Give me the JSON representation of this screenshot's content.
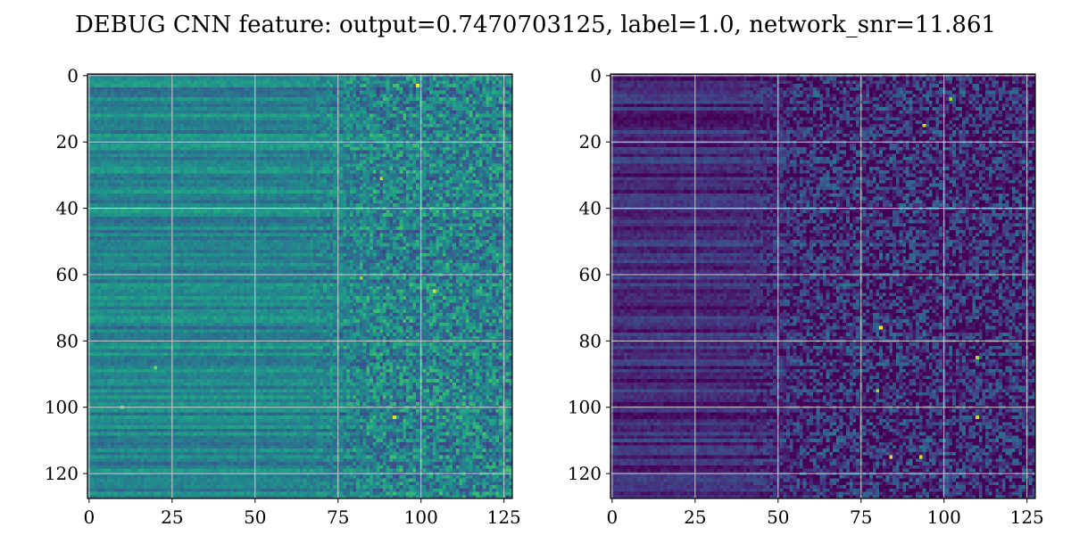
{
  "figure": {
    "title": "DEBUG CNN feature: output=0.7470703125, label=1.0, network_snr=11.861"
  },
  "chart_data": [
    {
      "type": "heatmap",
      "name": "",
      "colormap": "viridis",
      "rows": 128,
      "cols": 128,
      "xlim": [
        0,
        127
      ],
      "ylim": [
        127,
        0
      ],
      "x_ticks": [
        0,
        25,
        50,
        75,
        100,
        125
      ],
      "y_ticks": [
        0,
        20,
        40,
        60,
        80,
        100,
        120
      ],
      "grid": true,
      "grid_color": "#d0d0d0",
      "description_of_values": "horizontal banded stripes on left (cols 0-75), noisy speckled texture on right (cols 75-127); mean level mid-teal",
      "base_level": 0.45,
      "noise_left": 0.06,
      "noise_right": 0.22,
      "transition_col": 75,
      "highlights": [
        {
          "row": 3,
          "col": 99,
          "value": 1.0
        },
        {
          "row": 103,
          "col": 92,
          "value": 0.95
        },
        {
          "row": 65,
          "col": 104,
          "value": 0.95
        },
        {
          "row": 88,
          "col": 20,
          "value": 0.8
        },
        {
          "row": 100,
          "col": 10,
          "value": 0.8
        },
        {
          "row": 31,
          "col": 88,
          "value": 0.9
        },
        {
          "row": 61,
          "col": 82,
          "value": 0.85
        }
      ]
    },
    {
      "type": "heatmap",
      "name": "",
      "colormap": "viridis",
      "rows": 128,
      "cols": 128,
      "xlim": [
        0,
        127
      ],
      "ylim": [
        127,
        0
      ],
      "x_ticks": [
        0,
        25,
        50,
        75,
        100,
        125
      ],
      "y_ticks": [
        0,
        20,
        40,
        60,
        80,
        100,
        120
      ],
      "grid": true,
      "grid_color": "#d0d0d0",
      "description_of_values": "dark purple background with faint horizontal stripes on left, brighter noisy speckles on right",
      "base_level": 0.12,
      "noise_left": 0.05,
      "noise_right": 0.25,
      "transition_col": 50,
      "highlights": [
        {
          "row": 76,
          "col": 81,
          "value": 1.0
        },
        {
          "row": 115,
          "col": 84,
          "value": 0.95
        },
        {
          "row": 115,
          "col": 93,
          "value": 0.95
        },
        {
          "row": 103,
          "col": 110,
          "value": 0.9
        },
        {
          "row": 15,
          "col": 94,
          "value": 0.9
        },
        {
          "row": 95,
          "col": 80,
          "value": 0.85
        },
        {
          "row": 7,
          "col": 102,
          "value": 0.85
        },
        {
          "row": 85,
          "col": 110,
          "value": 0.85
        }
      ]
    }
  ]
}
